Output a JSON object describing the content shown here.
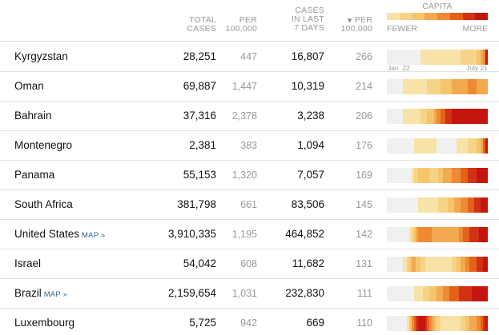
{
  "header": {
    "total_line1": "TOTAL",
    "total_line2": "CASES",
    "per_line1": "PER",
    "per_line2": "100,000",
    "last7_line1": "CASES",
    "last7_line2": "IN LAST",
    "last7_line3": "7 DAYS",
    "per2_arrow": "▼",
    "per2_line1": "PER",
    "per2_line2": "100,000",
    "legend_title": "CAPITA",
    "legend_fewer": "FEWER",
    "legend_more": "MORE"
  },
  "colors": {
    "scale": [
      "#f0f0f0",
      "#f7e3a8",
      "#f5d487",
      "#f5c46b",
      "#f2a94f",
      "#ee8a33",
      "#e4611c",
      "#d03314",
      "#c4160e"
    ],
    "map_link": "#326891"
  },
  "axis": {
    "start": "Jan. 22",
    "end": "July 21"
  },
  "rows": [
    {
      "country": "Kyrgyzstan",
      "map": "",
      "total": "28,251",
      "per": "447",
      "last7": "16,807",
      "per2": "266",
      "spark": [
        0,
        0,
        0,
        0,
        0,
        0,
        0,
        0,
        0,
        0,
        0,
        0,
        0,
        0,
        0,
        1,
        1,
        1,
        1,
        1,
        1,
        1,
        1,
        1,
        1,
        1,
        1,
        1,
        1,
        1,
        1,
        1,
        1,
        2,
        2,
        2,
        2,
        2,
        2,
        2,
        3,
        3,
        4,
        5,
        8
      ]
    },
    {
      "country": "Oman",
      "map": "",
      "total": "69,887",
      "per": "1,447",
      "last7": "10,319",
      "per2": "214",
      "spark": [
        0,
        0,
        0,
        0,
        0,
        0,
        0,
        1,
        1,
        1,
        1,
        1,
        1,
        1,
        1,
        1,
        1,
        1,
        2,
        2,
        2,
        2,
        2,
        2,
        3,
        3,
        3,
        3,
        3,
        4,
        4,
        4,
        4,
        4,
        4,
        4,
        5,
        5,
        5,
        5,
        4,
        4,
        4,
        4,
        4
      ]
    },
    {
      "country": "Bahrain",
      "map": "",
      "total": "37,316",
      "per": "2,378",
      "last7": "3,238",
      "per2": "206",
      "spark": [
        0,
        0,
        0,
        0,
        0,
        0,
        0,
        1,
        1,
        1,
        1,
        1,
        1,
        1,
        1,
        2,
        2,
        2,
        3,
        3,
        3,
        4,
        5,
        5,
        6,
        6,
        7,
        7,
        7,
        8,
        8,
        8,
        8,
        8,
        8,
        8,
        8,
        8,
        8,
        8,
        8,
        8,
        8,
        8,
        8
      ]
    },
    {
      "country": "Montenegro",
      "map": "",
      "total": "2,381",
      "per": "383",
      "last7": "1,094",
      "per2": "176",
      "spark": [
        0,
        0,
        0,
        0,
        0,
        0,
        0,
        0,
        0,
        0,
        0,
        0,
        1,
        1,
        1,
        1,
        1,
        1,
        1,
        1,
        1,
        1,
        0,
        0,
        0,
        0,
        0,
        0,
        0,
        0,
        0,
        1,
        1,
        1,
        1,
        1,
        2,
        2,
        2,
        2,
        3,
        3,
        4,
        6,
        8
      ]
    },
    {
      "country": "Panama",
      "map": "",
      "total": "55,153",
      "per": "1,320",
      "last7": "7,057",
      "per2": "169",
      "spark": [
        0,
        0,
        0,
        0,
        0,
        0,
        0,
        0,
        0,
        0,
        0,
        1,
        2,
        2,
        3,
        3,
        3,
        3,
        3,
        2,
        2,
        2,
        2,
        3,
        3,
        4,
        4,
        4,
        4,
        5,
        5,
        5,
        5,
        6,
        6,
        6,
        7,
        7,
        7,
        7,
        8,
        8,
        8,
        8,
        8
      ]
    },
    {
      "country": "South Africa",
      "map": "",
      "total": "381,798",
      "per": "661",
      "last7": "83,506",
      "per2": "145",
      "spark": [
        0,
        0,
        0,
        0,
        0,
        0,
        0,
        0,
        0,
        0,
        0,
        0,
        0,
        0,
        1,
        1,
        1,
        1,
        1,
        1,
        1,
        1,
        1,
        2,
        2,
        2,
        2,
        3,
        3,
        3,
        4,
        4,
        4,
        5,
        5,
        5,
        6,
        6,
        6,
        7,
        7,
        7,
        8,
        8,
        8
      ]
    },
    {
      "country": "United States",
      "map": "MAP »",
      "total": "3,910,335",
      "per": "1,195",
      "last7": "464,852",
      "per2": "142",
      "spark": [
        0,
        0,
        0,
        0,
        0,
        0,
        0,
        0,
        0,
        0,
        1,
        2,
        3,
        4,
        5,
        5,
        5,
        5,
        5,
        5,
        4,
        4,
        4,
        4,
        4,
        4,
        4,
        4,
        4,
        4,
        4,
        4,
        5,
        5,
        6,
        6,
        6,
        7,
        7,
        7,
        7,
        8,
        8,
        8,
        8
      ]
    },
    {
      "country": "Israel",
      "map": "",
      "total": "54,042",
      "per": "608",
      "last7": "11,682",
      "per2": "131",
      "spark": [
        0,
        0,
        0,
        0,
        0,
        0,
        0,
        1,
        1,
        2,
        3,
        4,
        4,
        3,
        3,
        2,
        2,
        1,
        1,
        1,
        1,
        1,
        1,
        1,
        1,
        1,
        1,
        1,
        1,
        2,
        2,
        3,
        3,
        4,
        4,
        5,
        5,
        6,
        6,
        6,
        7,
        7,
        7,
        8,
        8
      ]
    },
    {
      "country": "Brazil",
      "map": "MAP »",
      "total": "2,159,654",
      "per": "1,031",
      "last7": "232,830",
      "per2": "111",
      "spark": [
        0,
        0,
        0,
        0,
        0,
        0,
        0,
        0,
        0,
        0,
        0,
        0,
        1,
        1,
        1,
        1,
        2,
        2,
        2,
        3,
        3,
        3,
        4,
        4,
        4,
        5,
        5,
        5,
        6,
        6,
        6,
        6,
        7,
        7,
        7,
        7,
        7,
        7,
        8,
        8,
        8,
        8,
        8,
        8,
        8
      ]
    },
    {
      "country": "Luxembourg",
      "map": "",
      "total": "5,725",
      "per": "942",
      "last7": "669",
      "per2": "110",
      "spark": [
        0,
        0,
        0,
        0,
        0,
        0,
        0,
        0,
        0,
        1,
        3,
        5,
        6,
        7,
        8,
        8,
        8,
        7,
        6,
        5,
        4,
        3,
        2,
        2,
        1,
        1,
        1,
        1,
        1,
        1,
        1,
        1,
        1,
        2,
        2,
        3,
        3,
        4,
        4,
        4,
        5,
        5,
        6,
        7,
        8
      ]
    }
  ]
}
